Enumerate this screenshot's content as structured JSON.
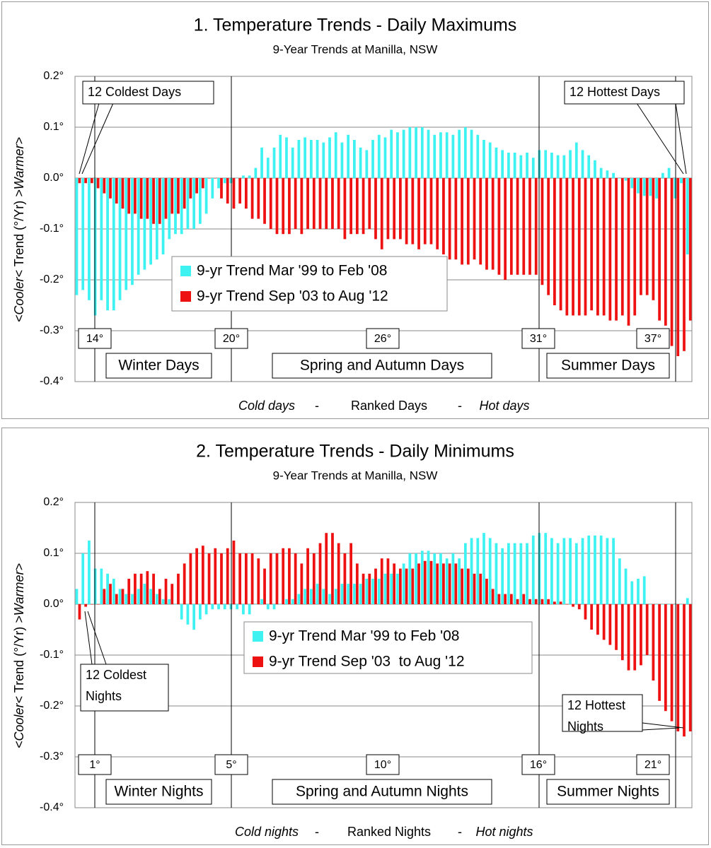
{
  "chart_data": [
    {
      "type": "bar",
      "title": "1. Temperature Trends - Daily Maximums",
      "subtitle": "9-Year Trends at Manilla, NSW",
      "y_label": [
        "<Cooler<",
        " Trend (°/Yr) ",
        ">Warmer>"
      ],
      "x_label": [
        "Cold days",
        "-",
        "Ranked Days",
        "-",
        "Hot days"
      ],
      "ylim": [
        -0.4,
        0.2
      ],
      "yticks": [
        {
          "value": -0.4,
          "label": "-0.4°"
        },
        {
          "value": -0.3,
          "label": "-0.3°"
        },
        {
          "value": -0.2,
          "label": "-0.2°"
        },
        {
          "value": -0.1,
          "label": "-0.1°"
        },
        {
          "value": 0,
          "label": "0.0°"
        },
        {
          "value": 0.1,
          "label": "0.1°"
        },
        {
          "value": 0.2,
          "label": "0.2°"
        }
      ],
      "grid": true,
      "series": [
        {
          "name": "9-yr Trend Mar '99 to Feb '08",
          "color": "#3ff2f2",
          "values": [
            -0.23,
            -0.22,
            -0.24,
            -0.27,
            -0.24,
            -0.26,
            -0.26,
            -0.24,
            -0.22,
            -0.21,
            -0.19,
            -0.18,
            -0.17,
            -0.16,
            -0.15,
            -0.12,
            -0.11,
            -0.11,
            -0.1,
            -0.1,
            -0.09,
            -0.07,
            -0.04,
            -0.02,
            -0.01,
            -0.01,
            0,
            0.005,
            0.005,
            0.02,
            0.06,
            0.04,
            0.06,
            0.085,
            0.08,
            0.06,
            0.075,
            0.08,
            0.075,
            0.075,
            0.07,
            0.08,
            0.09,
            0.07,
            0.085,
            0.075,
            0.06,
            0.055,
            0.075,
            0.085,
            0.08,
            0.095,
            0.09,
            0.095,
            0.1,
            0.1,
            0.1,
            0.095,
            0.085,
            0.09,
            0.09,
            0.085,
            0.095,
            0.1,
            0.095,
            0.085,
            0.075,
            0.07,
            0.06,
            0.055,
            0.05,
            0.05,
            0.045,
            0.05,
            0.04,
            0.055,
            0.055,
            0.05,
            0.045,
            0.045,
            0.055,
            0.07,
            0.055,
            0.045,
            0.035,
            0.02,
            0.015,
            0.01,
            0,
            -0.005,
            -0.02,
            -0.03,
            -0.035,
            -0.035,
            -0.04,
            0.01,
            0.02,
            -0.04,
            -0.01,
            -0.15
          ]
        },
        {
          "name": "9-yr Trend Sep '03 to Aug '12",
          "color": "#ee1111",
          "values": [
            -0.01,
            -0.01,
            -0.01,
            -0.02,
            -0.03,
            -0.04,
            -0.05,
            -0.06,
            -0.07,
            -0.07,
            -0.08,
            -0.08,
            -0.09,
            -0.09,
            -0.08,
            -0.07,
            -0.07,
            -0.06,
            -0.04,
            -0.03,
            -0.02,
            0,
            0,
            -0.04,
            -0.05,
            -0.06,
            -0.05,
            -0.06,
            -0.08,
            -0.08,
            -0.09,
            -0.1,
            -0.11,
            -0.11,
            -0.11,
            -0.1,
            -0.11,
            -0.1,
            -0.1,
            -0.1,
            -0.1,
            -0.1,
            -0.1,
            -0.12,
            -0.11,
            -0.11,
            -0.11,
            -0.1,
            -0.12,
            -0.14,
            -0.12,
            -0.12,
            -0.12,
            -0.13,
            -0.13,
            -0.14,
            -0.13,
            -0.13,
            -0.14,
            -0.15,
            -0.16,
            -0.16,
            -0.17,
            -0.17,
            -0.16,
            -0.17,
            -0.18,
            -0.18,
            -0.19,
            -0.2,
            -0.19,
            -0.19,
            -0.19,
            -0.19,
            -0.19,
            -0.21,
            -0.23,
            -0.25,
            -0.26,
            -0.27,
            -0.27,
            -0.27,
            -0.27,
            -0.26,
            -0.27,
            -0.27,
            -0.28,
            -0.28,
            -0.27,
            -0.29,
            -0.27,
            -0.23,
            -0.23,
            -0.24,
            -0.28,
            -0.29,
            -0.33,
            -0.35,
            -0.34,
            -0.28
          ]
        }
      ],
      "callouts": [
        [
          "12 Coldest Days"
        ],
        [
          "12 Hottest Days"
        ]
      ],
      "temp_markers": [
        "14°",
        "20°",
        "26°",
        "31°",
        "37°"
      ],
      "seasons": [
        "Winter Days",
        "Spring and Autumn Days",
        "Summer Days"
      ]
    },
    {
      "type": "bar",
      "title": "2. Temperature Trends - Daily Minimums",
      "subtitle": "9-Year Trends at Manilla, NSW",
      "y_label": [
        "<Cooler<",
        " Trend (°/Yr) ",
        ">Warmer>"
      ],
      "x_label": [
        "Cold nights",
        "-",
        "Ranked Nights",
        "-",
        "Hot nights"
      ],
      "ylim": [
        -0.4,
        0.2
      ],
      "yticks": [
        {
          "value": -0.4,
          "label": "-0.4°"
        },
        {
          "value": -0.3,
          "label": "-0.3°"
        },
        {
          "value": -0.2,
          "label": "-0.2°"
        },
        {
          "value": -0.1,
          "label": "-0.1°"
        },
        {
          "value": 0,
          "label": "0.0°"
        },
        {
          "value": 0.1,
          "label": "0.1°"
        },
        {
          "value": 0.2,
          "label": "0.2°"
        }
      ],
      "grid": true,
      "series": [
        {
          "name": "9-yr Trend Mar '99 to Feb '08",
          "color": "#3ff2f2",
          "values": [
            0.03,
            0.1,
            0.125,
            0.07,
            0.07,
            0.06,
            0.05,
            0.03,
            0.02,
            0.02,
            0.03,
            0.04,
            0.03,
            0.02,
            0.01,
            0.01,
            0,
            -0.03,
            -0.04,
            -0.05,
            -0.03,
            -0.02,
            -0.01,
            -0.01,
            -0.01,
            -0.01,
            -0.01,
            -0.02,
            -0.02,
            0,
            0.01,
            -0.01,
            -0.01,
            0,
            0.01,
            0.01,
            0.02,
            0.03,
            0.03,
            0.04,
            0.03,
            0.02,
            0.03,
            0.04,
            0.04,
            0.04,
            0.04,
            0.05,
            0.05,
            0.05,
            0.06,
            0.06,
            0.06,
            0.08,
            0.1,
            0.1,
            0.105,
            0.105,
            0.1,
            0.1,
            0.09,
            0.1,
            0.09,
            0.12,
            0.13,
            0.13,
            0.14,
            0.13,
            0.12,
            0.11,
            0.12,
            0.12,
            0.12,
            0.12,
            0.135,
            0.14,
            0.14,
            0.13,
            0.12,
            0.13,
            0.13,
            0.12,
            0.13,
            0.135,
            0.135,
            0.135,
            0.13,
            0.13,
            0.09,
            0.07,
            0.045,
            0.05,
            0.055,
            0,
            0,
            0,
            0,
            0,
            0,
            0.012
          ]
        },
        {
          "name": "9-yr Trend Sep '03  to Aug '12",
          "color": "#ee1111",
          "values": [
            -0.03,
            -0.005,
            0,
            0,
            0.03,
            0.04,
            0.02,
            0.03,
            0.05,
            0.06,
            0.06,
            0.065,
            0.06,
            0.03,
            0.05,
            0.04,
            0.06,
            0.08,
            0.1,
            0.11,
            0.115,
            0.1,
            0.11,
            0.1,
            0.11,
            0.125,
            0.1,
            0.1,
            0.1,
            0.09,
            0.07,
            0.1,
            0.1,
            0.11,
            0.11,
            0.1,
            0.08,
            0.11,
            0.1,
            0.12,
            0.14,
            0.14,
            0.12,
            0.1,
            0.12,
            0.08,
            0.06,
            0.06,
            0.07,
            0.09,
            0.09,
            0.08,
            0.07,
            0.07,
            0.07,
            0.08,
            0.085,
            0.085,
            0.08,
            0.08,
            0.08,
            0.08,
            0.07,
            0.07,
            0.06,
            0.06,
            0.05,
            0.03,
            0.02,
            0.02,
            0.02,
            0.01,
            0.02,
            0.01,
            0.01,
            0.01,
            0.01,
            0.005,
            0.005,
            0,
            -0.005,
            -0.01,
            -0.03,
            -0.05,
            -0.06,
            -0.07,
            -0.08,
            -0.09,
            -0.11,
            -0.13,
            -0.13,
            -0.12,
            -0.1,
            -0.15,
            -0.19,
            -0.21,
            -0.23,
            -0.25,
            -0.26,
            -0.25
          ]
        }
      ],
      "callouts": [
        [
          "12 Coldest",
          "Nights"
        ],
        [
          "12 Hottest",
          "Nights"
        ]
      ],
      "temp_markers": [
        "1°",
        "5°",
        "10°",
        "16°",
        "21°"
      ],
      "seasons": [
        "Winter Nights",
        "Spring and Autumn Nights",
        "Summer Nights"
      ]
    }
  ]
}
